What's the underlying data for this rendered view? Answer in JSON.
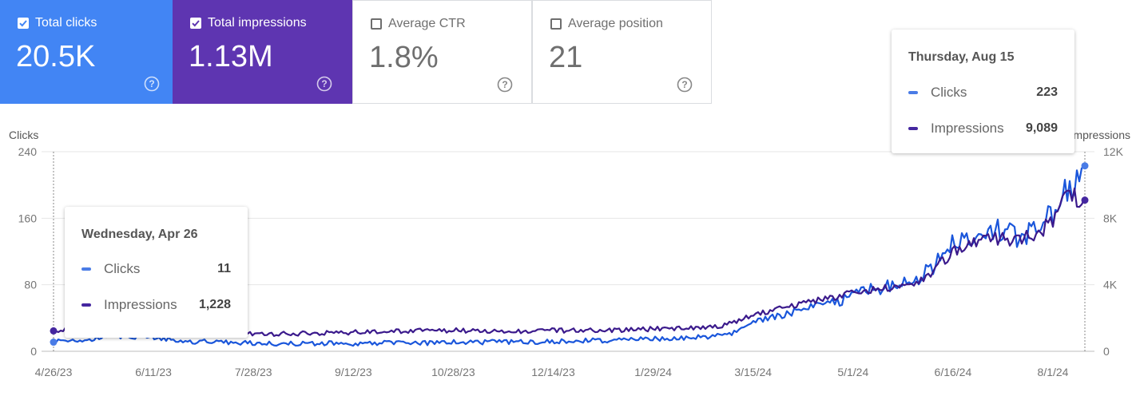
{
  "metrics": [
    {
      "label": "Total clicks",
      "value": "20.5K",
      "checked": true,
      "color": "#4285f4",
      "help_icon": "help-circle-icon"
    },
    {
      "label": "Total impressions",
      "value": "1.13M",
      "checked": true,
      "color": "#5e35b1",
      "help_icon": "help-circle-icon"
    },
    {
      "label": "Average CTR",
      "value": "1.8%",
      "checked": false,
      "color": "#ffffff",
      "help_icon": "help-circle-icon"
    },
    {
      "label": "Average position",
      "value": "21",
      "checked": false,
      "color": "#ffffff",
      "help_icon": "help-circle-icon"
    }
  ],
  "tooltips": [
    {
      "title": "Wednesday, Apr 26",
      "rows": [
        {
          "label": "Clicks",
          "value": "11"
        },
        {
          "label": "Impressions",
          "value": "1,228"
        }
      ]
    },
    {
      "title": "Thursday, Aug 15",
      "rows": [
        {
          "label": "Clicks",
          "value": "223"
        },
        {
          "label": "Impressions",
          "value": "9,089"
        }
      ]
    }
  ],
  "chart_data": {
    "type": "line",
    "grid": true,
    "x_range": [
      "2023-04-26",
      "2024-08-15"
    ],
    "x_ticks": [
      "4/26/23",
      "6/11/23",
      "7/28/23",
      "9/12/23",
      "10/28/23",
      "12/14/23",
      "1/29/24",
      "3/15/24",
      "5/1/24",
      "6/16/24",
      "8/1/24"
    ],
    "y_left": {
      "label": "Clicks",
      "range": [
        0,
        240
      ],
      "ticks": [
        "0",
        "80",
        "160",
        "240"
      ],
      "tick_values": [
        0,
        80,
        160,
        240
      ]
    },
    "y_right": {
      "label": "Impressions",
      "range": [
        0,
        12000
      ],
      "ticks": [
        "0",
        "4K",
        "8K",
        "12K"
      ],
      "tick_values": [
        0,
        4000,
        8000,
        12000
      ]
    },
    "series": [
      {
        "name": "Clicks",
        "axis": "left",
        "color": "#1a56db",
        "x": [
          "2023-04-26",
          "2023-05-10",
          "2023-05-25",
          "2023-06-11",
          "2023-06-25",
          "2023-07-10",
          "2023-07-28",
          "2023-08-15",
          "2023-09-01",
          "2023-09-12",
          "2023-09-28",
          "2023-10-14",
          "2023-10-28",
          "2023-11-14",
          "2023-12-01",
          "2023-12-14",
          "2023-12-30",
          "2024-01-15",
          "2024-01-29",
          "2024-02-10",
          "2024-02-25",
          "2024-03-05",
          "2024-03-15",
          "2024-03-25",
          "2024-04-05",
          "2024-04-15",
          "2024-04-25",
          "2024-05-01",
          "2024-05-10",
          "2024-05-20",
          "2024-05-30",
          "2024-06-05",
          "2024-06-16",
          "2024-06-25",
          "2024-07-05",
          "2024-07-15",
          "2024-07-25",
          "2024-08-01",
          "2024-08-05",
          "2024-08-10",
          "2024-08-15"
        ],
        "values": [
          11,
          14,
          18,
          17,
          12,
          11,
          10,
          9,
          10,
          9,
          10,
          10,
          11,
          11,
          11,
          12,
          13,
          13,
          15,
          16,
          18,
          22,
          35,
          42,
          48,
          55,
          62,
          70,
          74,
          82,
          88,
          100,
          132,
          140,
          145,
          140,
          150,
          165,
          195,
          205,
          223
        ]
      },
      {
        "name": "Impressions",
        "axis": "right",
        "color": "#3b1a8c",
        "x": [
          "2023-04-26",
          "2023-05-10",
          "2023-05-25",
          "2023-06-11",
          "2023-06-25",
          "2023-07-10",
          "2023-07-28",
          "2023-08-15",
          "2023-09-01",
          "2023-09-12",
          "2023-09-28",
          "2023-10-14",
          "2023-10-28",
          "2023-11-14",
          "2023-12-01",
          "2023-12-14",
          "2023-12-30",
          "2024-01-15",
          "2024-01-29",
          "2024-02-10",
          "2024-02-25",
          "2024-03-05",
          "2024-03-15",
          "2024-03-25",
          "2024-04-05",
          "2024-04-15",
          "2024-04-25",
          "2024-05-01",
          "2024-05-10",
          "2024-05-20",
          "2024-05-30",
          "2024-06-05",
          "2024-06-16",
          "2024-06-25",
          "2024-07-05",
          "2024-07-15",
          "2024-07-25",
          "2024-08-01",
          "2024-08-05",
          "2024-08-10",
          "2024-08-15"
        ],
        "values": [
          1228,
          1500,
          1600,
          1400,
          1200,
          1100,
          1050,
          1050,
          1100,
          1150,
          1200,
          1250,
          1250,
          1250,
          1200,
          1250,
          1250,
          1300,
          1350,
          1400,
          1450,
          1700,
          2200,
          2500,
          2850,
          3100,
          3350,
          3600,
          3700,
          3850,
          4100,
          4800,
          6100,
          6500,
          6800,
          6700,
          7200,
          7900,
          9000,
          9300,
          9089
        ]
      }
    ]
  }
}
